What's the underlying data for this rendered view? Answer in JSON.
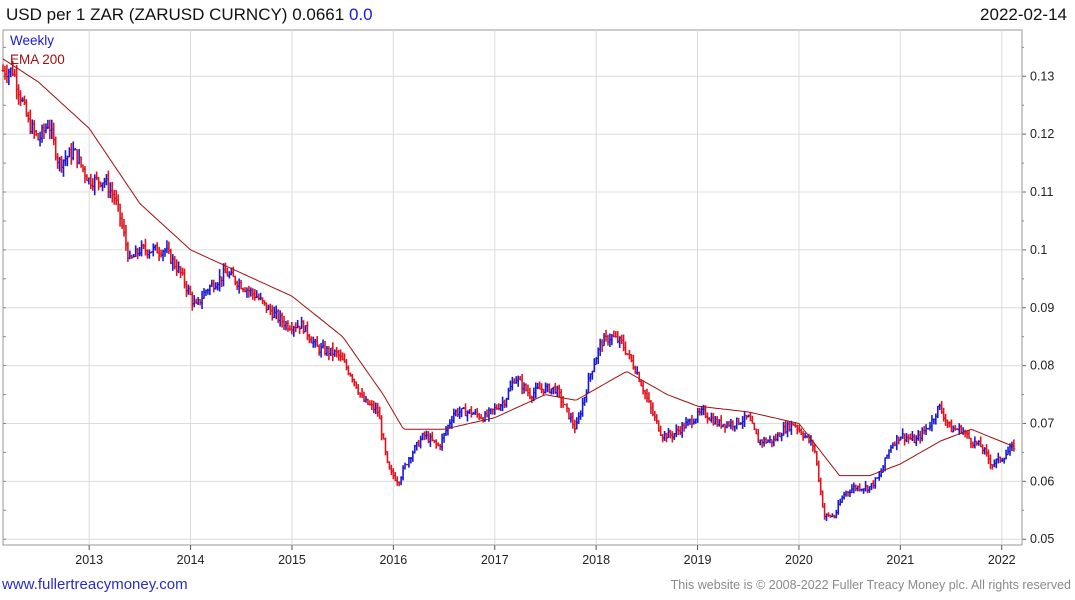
{
  "header": {
    "title": "USD per 1 ZAR (ZARUSD CURNCY)",
    "last_value": "0.0661",
    "change": "0.0",
    "date": "2022-02-14"
  },
  "footer": {
    "site_link": "www.fullertreacymoney.com",
    "copyright": "This website is © 2008-2022 Fuller Treacy Money plc. All rights reserved"
  },
  "colors": {
    "up": "#1a1ad6",
    "down": "#e0141e",
    "ema": "#a01010",
    "grid": "#dcdcdc"
  },
  "chart_data": {
    "type": "line",
    "ohlc_style": "weekly bars (blue = up week, red = down week)",
    "legend": [
      "Weekly",
      "EMA 200"
    ],
    "legend_placement": "top-left",
    "y_axis_position": "right",
    "ylim": [
      0.049,
      0.138
    ],
    "y_ticks": [
      {
        "value": 0.05,
        "label": "0.05"
      },
      {
        "value": 0.06,
        "label": "0.06"
      },
      {
        "value": 0.07,
        "label": "0.07"
      },
      {
        "value": 0.08,
        "label": "0.08"
      },
      {
        "value": 0.09,
        "label": "0.09"
      },
      {
        "value": 0.1,
        "label": "0.1"
      },
      {
        "value": 0.11,
        "label": "0.11"
      },
      {
        "value": 0.12,
        "label": "0.12"
      },
      {
        "value": 0.13,
        "label": "0.13"
      }
    ],
    "xlim": [
      2012.15,
      2022.2
    ],
    "x_ticks": [
      {
        "value": 2013,
        "label": "2013"
      },
      {
        "value": 2014,
        "label": "2014"
      },
      {
        "value": 2015,
        "label": "2015"
      },
      {
        "value": 2016,
        "label": "2016"
      },
      {
        "value": 2017,
        "label": "2017"
      },
      {
        "value": 2018,
        "label": "2018"
      },
      {
        "value": 2019,
        "label": "2019"
      },
      {
        "value": 2020,
        "label": "2020"
      },
      {
        "value": 2021,
        "label": "2021"
      },
      {
        "value": 2022,
        "label": "2022"
      }
    ],
    "grid": true,
    "series": [
      {
        "name": "Weekly",
        "anchor_points": [
          [
            2012.15,
            0.131
          ],
          [
            2012.25,
            0.131
          ],
          [
            2012.4,
            0.122
          ],
          [
            2012.5,
            0.119
          ],
          [
            2012.6,
            0.122
          ],
          [
            2012.7,
            0.115
          ],
          [
            2012.85,
            0.117
          ],
          [
            2013.0,
            0.112
          ],
          [
            2013.15,
            0.112
          ],
          [
            2013.25,
            0.109
          ],
          [
            2013.3,
            0.106
          ],
          [
            2013.4,
            0.098
          ],
          [
            2013.5,
            0.1
          ],
          [
            2013.6,
            0.1
          ],
          [
            2013.75,
            0.1
          ],
          [
            2013.9,
            0.096
          ],
          [
            2014.05,
            0.09
          ],
          [
            2014.15,
            0.093
          ],
          [
            2014.35,
            0.096
          ],
          [
            2014.5,
            0.094
          ],
          [
            2014.65,
            0.092
          ],
          [
            2014.75,
            0.09
          ],
          [
            2014.95,
            0.087
          ],
          [
            2015.1,
            0.087
          ],
          [
            2015.25,
            0.083
          ],
          [
            2015.45,
            0.082
          ],
          [
            2015.6,
            0.078
          ],
          [
            2015.7,
            0.074
          ],
          [
            2015.85,
            0.072
          ],
          [
            2015.95,
            0.062
          ],
          [
            2016.05,
            0.06
          ],
          [
            2016.15,
            0.064
          ],
          [
            2016.3,
            0.068
          ],
          [
            2016.45,
            0.066
          ],
          [
            2016.6,
            0.072
          ],
          [
            2016.75,
            0.072
          ],
          [
            2016.9,
            0.071
          ],
          [
            2017.1,
            0.074
          ],
          [
            2017.2,
            0.078
          ],
          [
            2017.35,
            0.075
          ],
          [
            2017.45,
            0.076
          ],
          [
            2017.6,
            0.076
          ],
          [
            2017.8,
            0.069
          ],
          [
            2017.95,
            0.079
          ],
          [
            2018.05,
            0.084
          ],
          [
            2018.15,
            0.085
          ],
          [
            2018.25,
            0.084
          ],
          [
            2018.4,
            0.079
          ],
          [
            2018.55,
            0.072
          ],
          [
            2018.65,
            0.068
          ],
          [
            2018.75,
            0.068
          ],
          [
            2018.9,
            0.07
          ],
          [
            2019.05,
            0.072
          ],
          [
            2019.2,
            0.07
          ],
          [
            2019.35,
            0.07
          ],
          [
            2019.5,
            0.071
          ],
          [
            2019.6,
            0.067
          ],
          [
            2019.75,
            0.067
          ],
          [
            2019.85,
            0.069
          ],
          [
            2019.95,
            0.07
          ],
          [
            2020.05,
            0.068
          ],
          [
            2020.15,
            0.066
          ],
          [
            2020.25,
            0.054
          ],
          [
            2020.35,
            0.054
          ],
          [
            2020.45,
            0.058
          ],
          [
            2020.55,
            0.059
          ],
          [
            2020.7,
            0.059
          ],
          [
            2020.8,
            0.061
          ],
          [
            2020.9,
            0.066
          ],
          [
            2021.0,
            0.068
          ],
          [
            2021.15,
            0.067
          ],
          [
            2021.3,
            0.07
          ],
          [
            2021.38,
            0.073
          ],
          [
            2021.5,
            0.069
          ],
          [
            2021.6,
            0.069
          ],
          [
            2021.7,
            0.067
          ],
          [
            2021.8,
            0.066
          ],
          [
            2021.9,
            0.063
          ],
          [
            2022.0,
            0.064
          ],
          [
            2022.12,
            0.0661
          ]
        ]
      },
      {
        "name": "EMA 200",
        "anchor_points": [
          [
            2012.15,
            0.133
          ],
          [
            2012.5,
            0.129
          ],
          [
            2013.0,
            0.121
          ],
          [
            2013.5,
            0.108
          ],
          [
            2014.0,
            0.1
          ],
          [
            2014.5,
            0.096
          ],
          [
            2015.0,
            0.092
          ],
          [
            2015.5,
            0.085
          ],
          [
            2015.9,
            0.075
          ],
          [
            2016.1,
            0.069
          ],
          [
            2016.5,
            0.069
          ],
          [
            2017.0,
            0.071
          ],
          [
            2017.5,
            0.075
          ],
          [
            2017.8,
            0.074
          ],
          [
            2018.3,
            0.079
          ],
          [
            2018.7,
            0.075
          ],
          [
            2019.0,
            0.073
          ],
          [
            2019.5,
            0.072
          ],
          [
            2020.0,
            0.07
          ],
          [
            2020.4,
            0.061
          ],
          [
            2020.7,
            0.061
          ],
          [
            2021.0,
            0.063
          ],
          [
            2021.4,
            0.067
          ],
          [
            2021.7,
            0.069
          ],
          [
            2022.12,
            0.066
          ]
        ]
      }
    ]
  }
}
